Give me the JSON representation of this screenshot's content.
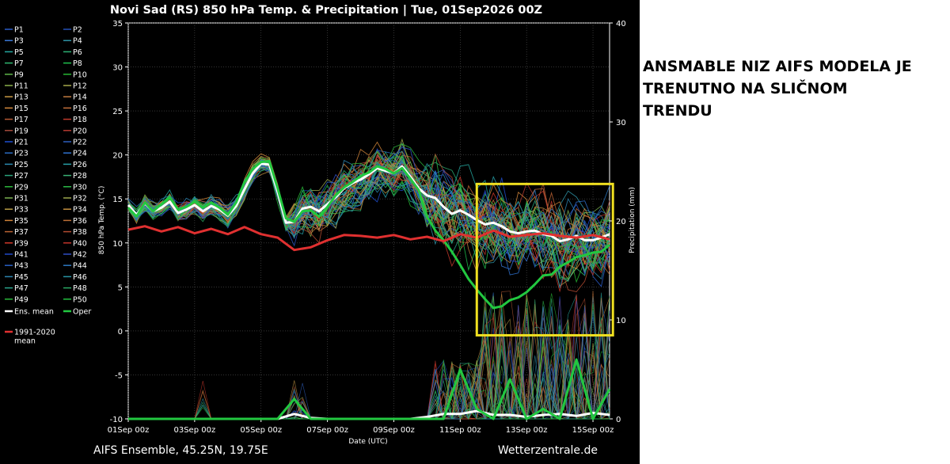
{
  "chart_data": {
    "type": "line",
    "title": "Novi Sad  (RS)  850 hPa Temp. & Precipitation | Tue, 01Sep2026 00Z",
    "xlabel": "Date (UTC)",
    "ylabel_left": "850 hPa Temp. (°C)",
    "ylabel_right": "Precipitation (mm)",
    "ylim_left": [
      -10,
      35
    ],
    "ylim_right": [
      0,
      40
    ],
    "yticks_left": [
      "35",
      "30",
      "25",
      "20",
      "15",
      "10",
      "5",
      "0",
      "-5",
      "-10"
    ],
    "yticks_right": [
      "40",
      "30",
      "20",
      "10",
      "0"
    ],
    "x_ticks": [
      "01Sep 00z",
      "03Sep 00z",
      "05Sep 00z",
      "07Sep 00z",
      "09Sep 00z",
      "11Sep 00z",
      "13Sep 00z",
      "15Sep 00z"
    ],
    "x_range_days": [
      0,
      14.5
    ],
    "grid": true,
    "legend_position": "left",
    "footer_left": "AIFS Ensemble, 45.25N, 19.75E",
    "footer_right": "Wetterzentrale.de",
    "ensemble_labels": [
      "P1",
      "P2",
      "P3",
      "P4",
      "P5",
      "P6",
      "P7",
      "P8",
      "P9",
      "P10",
      "P11",
      "P12",
      "P13",
      "P14",
      "P15",
      "P16",
      "P17",
      "P18",
      "P19",
      "P20",
      "P21",
      "P22",
      "P23",
      "P24",
      "P25",
      "P26",
      "P27",
      "P28",
      "P29",
      "P30",
      "P31",
      "P32",
      "P33",
      "P34",
      "P35",
      "P36",
      "P37",
      "P38",
      "P39",
      "P40",
      "P41",
      "P42",
      "P43",
      "P44",
      "P45",
      "P46",
      "P47",
      "P48",
      "P49",
      "P50"
    ],
    "ensemble_colors": [
      "#2a5cc8",
      "#2450b8",
      "#3a78d8",
      "#2f95a8",
      "#25a8a0",
      "#2cb074",
      "#30b870",
      "#1fc14d",
      "#5eb84a",
      "#26b832",
      "#8ab04a",
      "#a5a84a",
      "#c89a44",
      "#c07a40",
      "#d68a3c",
      "#c46f3a",
      "#b65a34",
      "#c23a2c",
      "#a44a3c",
      "#b83a30",
      "#1e4fd0",
      "#2d5ebc",
      "#2a6cc0",
      "#2f72d0",
      "#2a8ab0",
      "#26a0a8",
      "#2aa47c",
      "#3ab074",
      "#2cb83c",
      "#2cbb48",
      "#7ab050",
      "#9aa64e",
      "#b89c46",
      "#c49040",
      "#cf8238",
      "#be7036",
      "#ba6232",
      "#b24a30",
      "#d0382a",
      "#c0342a",
      "#2048c8",
      "#2f4ec4",
      "#2860c4",
      "#2c78c0",
      "#2c84b0",
      "#2894a4",
      "#2aa48c",
      "#2aa864",
      "#2ab83a",
      "#22c040"
    ],
    "legend_mean_labels": [
      "Ens. mean",
      "Oper",
      "1991-2020 mean"
    ],
    "mean_colors": {
      "ens_mean": "#ffffff",
      "oper": "#22c840",
      "climate": "#e03030"
    },
    "series": [
      {
        "name": "Ens. mean",
        "axis": "temp",
        "x": [
          0,
          0.25,
          0.5,
          0.75,
          1,
          1.25,
          1.5,
          1.75,
          2,
          2.25,
          2.5,
          2.75,
          3,
          3.25,
          3.5,
          3.75,
          4,
          4.25,
          4.5,
          4.75,
          5,
          5.25,
          5.5,
          5.75,
          6,
          6.25,
          6.5,
          6.75,
          7,
          7.25,
          7.5,
          7.75,
          8,
          8.25,
          8.5,
          8.75,
          9,
          9.25,
          9.5,
          9.75,
          10,
          10.25,
          10.5,
          10.75,
          11,
          11.25,
          11.5,
          11.75,
          12,
          12.25,
          12.5,
          12.75,
          13,
          13.25,
          13.5,
          13.75,
          14,
          14.25,
          14.5
        ],
        "y": [
          14.3,
          13.2,
          14.5,
          13.6,
          14,
          14.7,
          13.4,
          13.8,
          14.3,
          13.6,
          14.2,
          13.8,
          13.1,
          14.2,
          16.1,
          17.9,
          19,
          18.9,
          15.8,
          12.3,
          12.4,
          13.9,
          14.1,
          13.6,
          14.4,
          15.2,
          16.2,
          16.8,
          17.2,
          17.8,
          18.5,
          18.2,
          17.9,
          18.7,
          17.5,
          16.2,
          15.4,
          15.1,
          14.1,
          13.3,
          13.7,
          13.2,
          12.6,
          12.1,
          12.3,
          11.9,
          11.3,
          11.1,
          11.3,
          11.4,
          11,
          10.8,
          10.2,
          10.4,
          10.8,
          10.3,
          10.3,
          10.6,
          11
        ]
      },
      {
        "name": "Oper",
        "axis": "temp",
        "x": [
          0,
          0.25,
          0.5,
          0.75,
          1,
          1.25,
          1.5,
          1.75,
          2,
          2.25,
          2.5,
          2.75,
          3,
          3.25,
          3.5,
          3.75,
          4,
          4.25,
          4.5,
          4.75,
          5,
          5.25,
          5.5,
          5.75,
          6,
          6.25,
          6.5,
          6.75,
          7,
          7.25,
          7.5,
          7.75,
          8,
          8.25,
          8.5,
          8.75,
          9,
          9.25,
          9.5,
          9.75,
          10,
          10.25,
          10.5,
          10.75,
          11,
          11.25,
          11.5,
          11.75,
          12,
          12.25,
          12.5,
          12.75,
          13,
          13.25,
          13.5,
          13.75,
          14,
          14.25,
          14.5
        ],
        "y": [
          14,
          13,
          14.6,
          13.6,
          14.4,
          15.2,
          13.8,
          14.1,
          14.7,
          14,
          14.6,
          14,
          13.2,
          14.6,
          16.9,
          18.4,
          19.2,
          19.3,
          16.2,
          12.8,
          12.4,
          13.6,
          13.7,
          13,
          14.1,
          15.4,
          16.3,
          16.9,
          17.6,
          18,
          18.7,
          18.4,
          17.9,
          18.5,
          17.3,
          16,
          13,
          11.4,
          10.3,
          9,
          7.5,
          5.9,
          4.7,
          3.6,
          2.6,
          2.8,
          3.5,
          3.8,
          4.4,
          5.3,
          6.3,
          6.4,
          7.3,
          7.8,
          8.4,
          8.6,
          8.9,
          9,
          9.8
        ]
      },
      {
        "name": "1991-2020 mean",
        "axis": "temp",
        "x": [
          0,
          0.5,
          1,
          1.5,
          2,
          2.5,
          3,
          3.5,
          4,
          4.5,
          5,
          5.5,
          6,
          6.5,
          7,
          7.5,
          8,
          8.5,
          9,
          9.5,
          10,
          10.5,
          11,
          11.5,
          12,
          12.5,
          13,
          13.5,
          14,
          14.5
        ],
        "y": [
          11.5,
          11.9,
          11.3,
          11.8,
          11.1,
          11.6,
          11,
          11.8,
          11,
          10.6,
          9.2,
          9.5,
          10.3,
          10.9,
          10.8,
          10.6,
          10.9,
          10.4,
          10.7,
          10.2,
          11,
          10.6,
          11.4,
          10.7,
          10.9,
          11.1,
          10.8,
          10.6,
          10.9,
          10.4
        ]
      },
      {
        "name": "Ens. mean precipitation",
        "axis": "precip",
        "x": [
          0,
          0.5,
          1,
          1.5,
          2,
          2.5,
          3,
          3.5,
          4,
          4.5,
          5,
          5.5,
          6,
          6.5,
          7,
          7.5,
          8,
          8.5,
          9,
          9.5,
          10,
          10.5,
          11,
          11.5,
          12,
          12.5,
          13,
          13.5,
          14,
          14.5
        ],
        "y": [
          0,
          0,
          0,
          0,
          0,
          0,
          0,
          0,
          0,
          0,
          0.5,
          0.1,
          0,
          0,
          0,
          0,
          0,
          0,
          0.2,
          0.5,
          0.5,
          0.8,
          0.4,
          0.4,
          0.2,
          0.4,
          0.5,
          0.3,
          0.6,
          0.4
        ]
      },
      {
        "name": "Oper precipitation",
        "axis": "precip",
        "x": [
          0,
          0.5,
          1,
          1.5,
          2,
          2.5,
          3,
          3.5,
          4,
          4.5,
          5,
          5.5,
          6,
          6.5,
          7,
          7.5,
          8,
          8.5,
          9,
          9.5,
          10,
          10.5,
          11,
          11.5,
          12,
          12.5,
          13,
          13.5,
          14,
          14.5
        ],
        "y": [
          0,
          0,
          0,
          0,
          0,
          0,
          0,
          0,
          0,
          0,
          2,
          0,
          0,
          0,
          0,
          0,
          0,
          0,
          0,
          0,
          5,
          1,
          0,
          4,
          0,
          1,
          0,
          6,
          0,
          3
        ]
      }
    ]
  },
  "side_note": {
    "lines": [
      "ANSMABLE NIZ AIFS MODELA JE",
      "TRENUTNO NA SLIČNOM",
      "TRENDU"
    ]
  },
  "highlight_box": {
    "color": "#f0e020",
    "x_from_day": 10.5,
    "x_to_day": 14.6,
    "temp_from": -0.5,
    "temp_to": 16.7
  }
}
